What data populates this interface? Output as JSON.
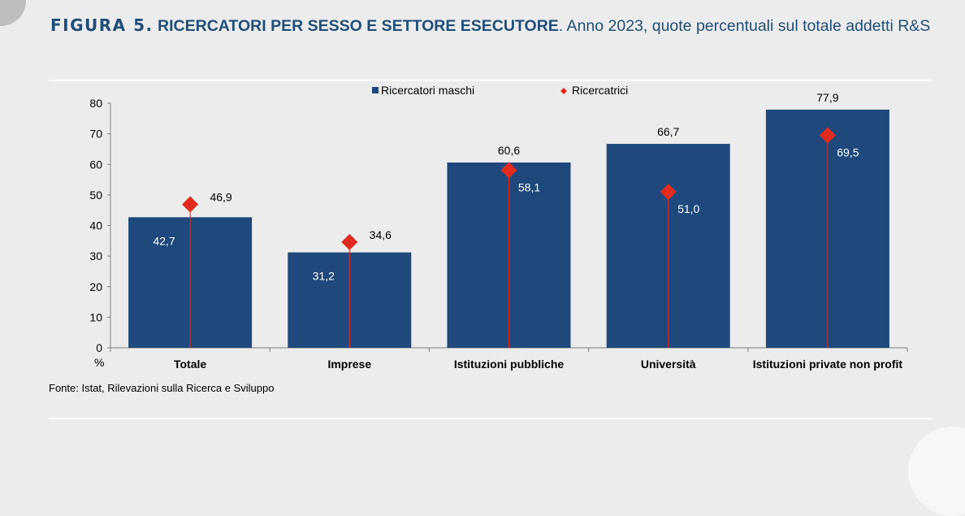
{
  "figure": {
    "number": "FIGURA 5.",
    "title": "RICERCATORI PER SESSO E SETTORE ESECUTORE",
    "subtitle": ". Anno 2023, quote percentuali sul totale addetti R&S",
    "source": "Fonte: Istat, Rilevazioni sulla Ricerca e Sviluppo"
  },
  "colors": {
    "bar": "#1f497d",
    "marker": "#e02b1e",
    "title": "#1f4e79"
  },
  "chart_data": {
    "type": "bar",
    "categories": [
      "Totale",
      "Imprese",
      "Istituzioni pubbliche",
      "Università",
      "Istituzioni private non profit"
    ],
    "series": [
      {
        "name": "Ricercatori maschi",
        "kind": "bar",
        "values": [
          42.7,
          31.2,
          60.6,
          66.7,
          77.9
        ],
        "labels": [
          "42,7",
          "31,2",
          "60,6",
          "66,7",
          "77,9"
        ]
      },
      {
        "name": "Ricercatrici",
        "kind": "marker",
        "values": [
          46.9,
          34.6,
          58.1,
          51.0,
          69.5
        ],
        "labels": [
          "46,9",
          "34,6",
          "58,1",
          "51,0",
          "69,5"
        ]
      }
    ],
    "ylim": [
      0,
      80
    ],
    "yticks": [
      0,
      10,
      20,
      30,
      40,
      50,
      60,
      70,
      80
    ],
    "ylabel": "%",
    "legend": "top-center",
    "grid": false
  }
}
